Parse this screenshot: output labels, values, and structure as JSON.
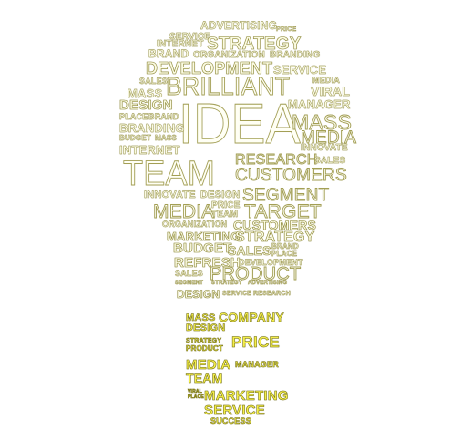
{
  "image": {
    "description_words": [
      "ADVERTISING",
      "PRICE",
      "SERVICE",
      "INTERNET",
      "STRATEGY",
      "BRAND",
      "ORGANIZATION",
      "BRANDING",
      "DEVELOPMENT",
      "SERVICE",
      "SALES",
      "BRILLIANT",
      "MEDIA",
      "MASS",
      "VIRAL",
      "DESIGN",
      "MANAGER",
      "PLACE",
      "BRAND",
      "IDEA",
      "MASS",
      "BRANDING",
      "BUDGET",
      "MASS",
      "MEDIA",
      "INTERNET",
      "INNOVATE",
      "RESEARCH",
      "SALES",
      "TEAM",
      "CUSTOMERS",
      "INNOVATE",
      "DESIGN",
      "SEGMENT",
      "PRICE",
      "MEDIA",
      "TEAM",
      "TARGET",
      "ORGANIZATION",
      "CUSTOMERS",
      "MARKETING",
      "STRATEGY",
      "BUDGET",
      "SALES",
      "BRAND",
      "PLACE",
      "REFRESH",
      "DEVELOPMENT",
      "SALES",
      "PRODUCT",
      "SEGMENT",
      "STRATEGY",
      "ADVERTISING",
      "DESIGN",
      "SERVICE",
      "RESEARCH",
      "MASS",
      "COMPANY",
      "DESIGN",
      "STRATEGY",
      "PRODUCT",
      "PRICE",
      "MEDIA",
      "MANAGER",
      "TEAM",
      "VIRAL",
      "PLACE",
      "MARKETING",
      "SERVICE",
      "SUCCESS"
    ],
    "palette": {
      "bulb_fill": "#fbfbe2",
      "bulb_outline": "#8f8a3a",
      "base_fill": "#f4ee4a",
      "background": "#ffffff"
    }
  }
}
